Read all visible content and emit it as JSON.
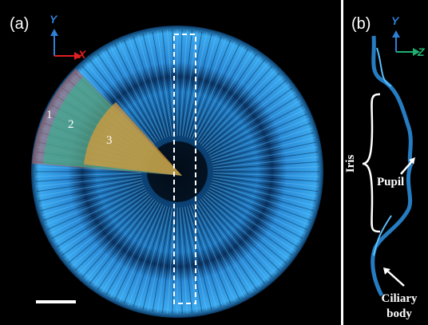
{
  "panel_a": {
    "label": "(a)",
    "axis_y": "Y",
    "axis_x": "X",
    "regions": [
      "1",
      "2",
      "3"
    ]
  },
  "panel_b": {
    "label": "(b)",
    "axis_y": "Y",
    "axis_z": "Z",
    "iris": "Iris",
    "pupil": "Pupil",
    "ciliary": [
      "Ciliary",
      "body"
    ]
  }
}
